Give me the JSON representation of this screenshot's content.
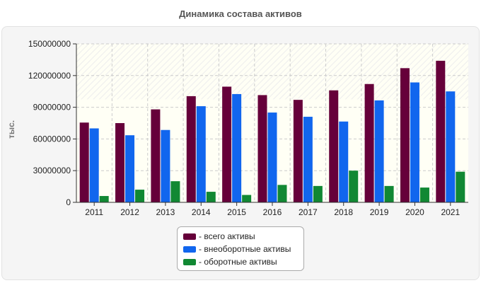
{
  "chart_data": {
    "type": "bar",
    "title": "Динамика состава активов",
    "ylabel": "тыс.",
    "xlabel": "",
    "categories": [
      "2011",
      "2012",
      "2013",
      "2014",
      "2015",
      "2016",
      "2017",
      "2018",
      "2019",
      "2020",
      "2021"
    ],
    "ylim": [
      0,
      150000000
    ],
    "yticks": [
      "0",
      "30000000",
      "60000000",
      "90000000",
      "120000000",
      "150000000"
    ],
    "grid": true,
    "legend_position": "bottom",
    "series": [
      {
        "name": "- всего активы",
        "color": "#66003a",
        "values": [
          75500000,
          75000000,
          88000000,
          100500000,
          109500000,
          101500000,
          97000000,
          106000000,
          112000000,
          127000000,
          134000000
        ]
      },
      {
        "name": "- внеоборотные активы",
        "color": "#1166ee",
        "values": [
          70000000,
          63500000,
          68500000,
          91000000,
          102500000,
          85000000,
          81000000,
          76500000,
          96500000,
          113500000,
          105000000
        ]
      },
      {
        "name": "- оборотные активы",
        "color": "#118833",
        "values": [
          6000000,
          12000000,
          20000000,
          10000000,
          7000000,
          16500000,
          15500000,
          30000000,
          15500000,
          14000000,
          29000000
        ]
      }
    ]
  }
}
